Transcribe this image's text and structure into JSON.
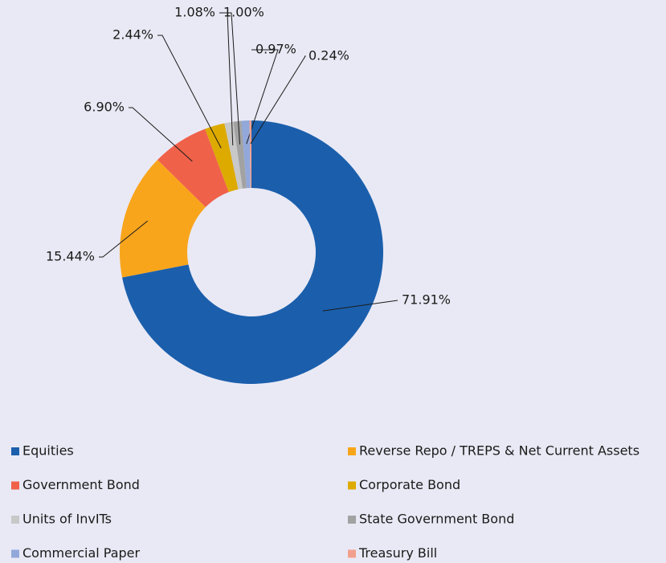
{
  "chart_data": {
    "type": "donut",
    "categories": [
      "Equities",
      "Reverse Repo / TREPS & Net Current Assets",
      "Government Bond",
      "Corporate Bond",
      "Units of InvITs",
      "State Government Bond",
      "Commercial Paper",
      "Treasury Bill"
    ],
    "values": [
      71.91,
      15.44,
      6.9,
      2.44,
      1.08,
      1.0,
      0.97,
      0.24
    ],
    "value_labels": [
      "71.91%",
      "15.44%",
      "6.90%",
      "2.44%",
      "1.08%",
      "1.00%",
      "0.97%",
      "0.24%"
    ],
    "colors": [
      "#1b5fac",
      "#f8a51c",
      "#f0614a",
      "#ddaa00",
      "#c8c8c8",
      "#a2a2a2",
      "#92a8da",
      "#f2a08e"
    ],
    "legend": "bottom"
  }
}
